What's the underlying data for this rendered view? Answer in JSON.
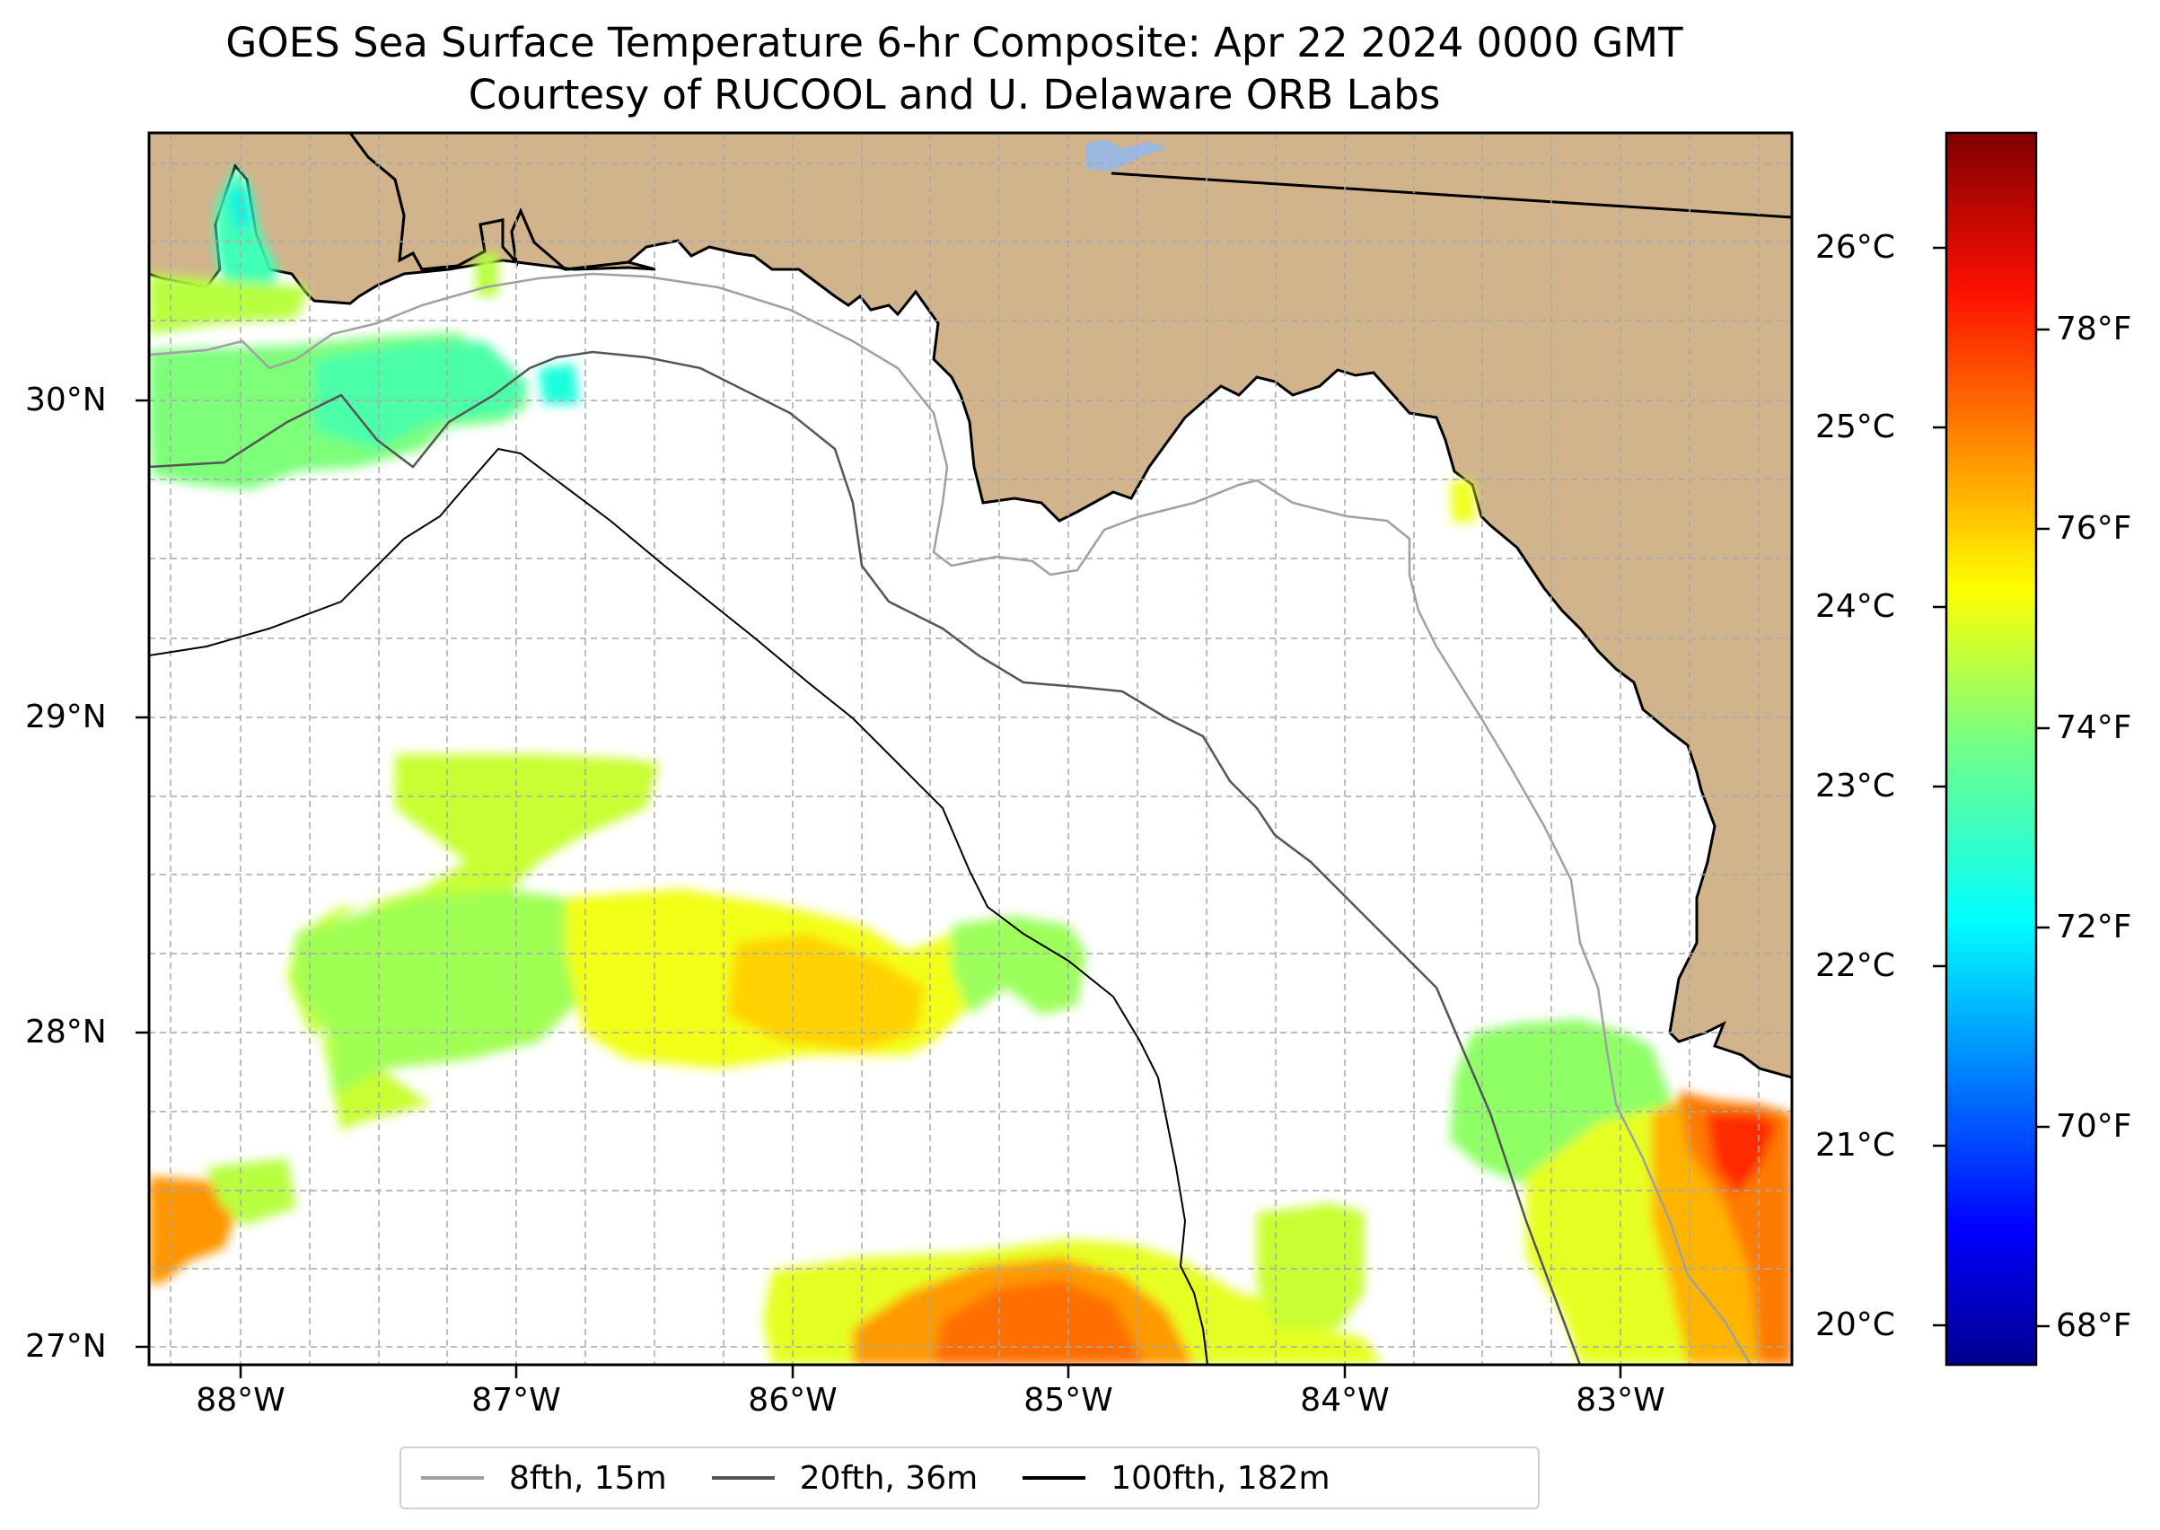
{
  "title": "GOES Sea Surface Temperature 6-hr Composite: Apr 22 2024 0000 GMT",
  "subtitle": "Courtesy of RUCOOL and U. Delaware ORB Labs",
  "lat_labels": [
    "30°N",
    "29°N",
    "28°N",
    "27°N"
  ],
  "lon_labels": [
    "88°W",
    "87°W",
    "86°W",
    "85°W",
    "84°W",
    "83°W"
  ],
  "colorbar": {
    "celsius_labels": [
      "26°C",
      "25°C",
      "24°C",
      "23°C",
      "22°C",
      "21°C",
      "20°C"
    ],
    "fahrenheit_labels": [
      "78°F",
      "76°F",
      "74°F",
      "72°F",
      "70°F",
      "68°F"
    ],
    "colormap": "jet",
    "range_c": [
      19.8,
      26.7
    ]
  },
  "legend": {
    "items": [
      {
        "label": "8fth, 15m",
        "color": "#a0a0a0"
      },
      {
        "label": "20fth, 36m",
        "color": "#555555"
      },
      {
        "label": "100fth, 182m",
        "color": "#000000"
      }
    ],
    "placement": "bottom-center"
  },
  "colors": {
    "land": "#d2b48c",
    "ocean": "#ffffff",
    "lake": "#9bb8e0",
    "grid": "#b0b0b0"
  }
}
